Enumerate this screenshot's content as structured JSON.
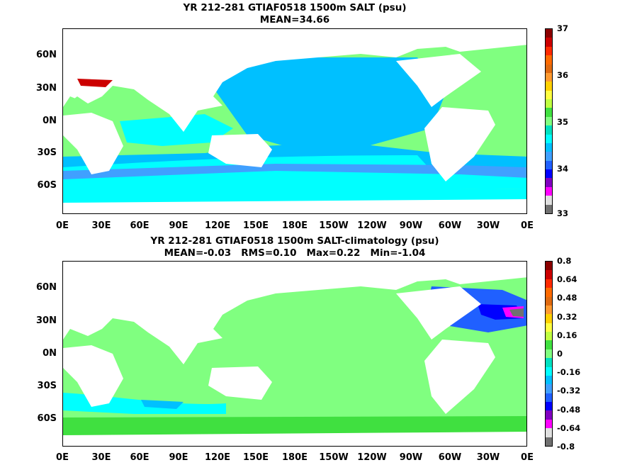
{
  "panel1": {
    "title": "YR 212-281 GTIAF0518 1500m SALT (psu)",
    "subtitle": "MEAN=34.66"
  },
  "panel2": {
    "title": "YR 212-281 GTIAF0518 1500m SALT-climatology (psu)",
    "subtitle": "MEAN=-0.03   RMS=0.10   Max=0.22   Min=-1.04"
  },
  "lat_labels": [
    "60N",
    "30N",
    "0N",
    "30S",
    "60S"
  ],
  "lon_labels": [
    "0E",
    "30E",
    "60E",
    "90E",
    "120E",
    "150E",
    "180E",
    "150W",
    "120W",
    "90W",
    "60W",
    "30W",
    "0E"
  ],
  "colorbar1": {
    "labels": [
      "37",
      "36",
      "35",
      "34",
      "33"
    ],
    "colors": [
      "#8b0000",
      "#cc0000",
      "#ff2a00",
      "#ff6a00",
      "#e06a10",
      "#ff9a30",
      "#ffd000",
      "#ffff40",
      "#c0ff40",
      "#40e040",
      "#80ff80",
      "#00e0c0",
      "#00ffff",
      "#00c0ff",
      "#40a0ff",
      "#2060ff",
      "#0000ff",
      "#8000c0",
      "#ff00ff",
      "#e0e0e0",
      "#707070"
    ]
  },
  "colorbar2": {
    "labels": [
      "0.8",
      "0.64",
      "0.48",
      "0.32",
      "0.16",
      "0",
      "-0.16",
      "-0.32",
      "-0.48",
      "-0.64",
      "-0.8"
    ],
    "colors": [
      "#8b0000",
      "#cc0000",
      "#ff2a00",
      "#ff6a00",
      "#e06a10",
      "#ff9a30",
      "#ffd000",
      "#ffff40",
      "#c0ff40",
      "#40e040",
      "#80ff80",
      "#00e0c0",
      "#00ffff",
      "#00c0ff",
      "#40a0ff",
      "#2060ff",
      "#0000ff",
      "#8000c0",
      "#ff00ff",
      "#e0e0e0",
      "#707070"
    ]
  },
  "colors": {
    "land": "#ffffff",
    "ocean_salt_main": "#00c0ff",
    "ocean_salt_band": "#00ffff",
    "ocean_salt_high": "#80ff80",
    "ocean_anom_main": "#80ff80",
    "ocean_anom_low": "#00ffff",
    "ocean_anom_neg": "#2060ff"
  }
}
